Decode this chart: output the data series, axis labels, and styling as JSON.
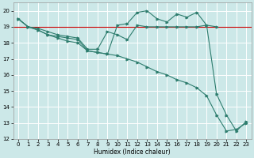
{
  "xlabel": "Humidex (Indice chaleur)",
  "bg_color": "#cce8e8",
  "grid_color": "#ffffff",
  "line_color": "#2e7d6e",
  "red_line_color": "#cc0000",
  "xlim": [
    -0.5,
    23.5
  ],
  "ylim": [
    12,
    20.5
  ],
  "yticks": [
    12,
    13,
    14,
    15,
    16,
    17,
    18,
    19,
    20
  ],
  "xticks": [
    0,
    1,
    2,
    3,
    4,
    5,
    6,
    7,
    8,
    9,
    10,
    11,
    12,
    13,
    14,
    15,
    16,
    17,
    18,
    19,
    20,
    21,
    22,
    23
  ],
  "red_line_y": 19.0,
  "series1_x": [
    0,
    1,
    2,
    3,
    4,
    5,
    6,
    7,
    8,
    9,
    10,
    11,
    12,
    13,
    14,
    15,
    16,
    17,
    18,
    19,
    20
  ],
  "series1_y": [
    19.5,
    19.0,
    18.9,
    18.7,
    18.5,
    18.4,
    18.3,
    17.6,
    17.6,
    18.7,
    18.5,
    18.2,
    19.1,
    19.0,
    19.0,
    19.0,
    19.0,
    19.0,
    19.0,
    19.1,
    19.0
  ],
  "series2_x": [
    0,
    1,
    2,
    3,
    4,
    5,
    6,
    7,
    8,
    9,
    10,
    11,
    12,
    13,
    14,
    15,
    16,
    17,
    18,
    19,
    20,
    21,
    22,
    23
  ],
  "series2_y": [
    19.5,
    19.0,
    18.8,
    18.5,
    18.4,
    18.3,
    18.2,
    17.5,
    17.4,
    17.3,
    17.2,
    17.0,
    16.8,
    16.5,
    16.2,
    16.0,
    15.7,
    15.5,
    15.2,
    14.7,
    13.5,
    12.5,
    12.6,
    13.0
  ],
  "series3_x": [
    0,
    1,
    2,
    3,
    4,
    5,
    6,
    7,
    8,
    9,
    10,
    11,
    12,
    13,
    14,
    15,
    16,
    17,
    18,
    19,
    20,
    21,
    22,
    23
  ],
  "series3_y": [
    19.5,
    19.0,
    18.8,
    18.5,
    18.3,
    18.1,
    18.0,
    17.5,
    17.4,
    17.3,
    19.1,
    19.2,
    19.9,
    20.0,
    19.5,
    19.3,
    19.8,
    19.6,
    19.9,
    19.1,
    14.8,
    13.5,
    12.5,
    13.1
  ]
}
